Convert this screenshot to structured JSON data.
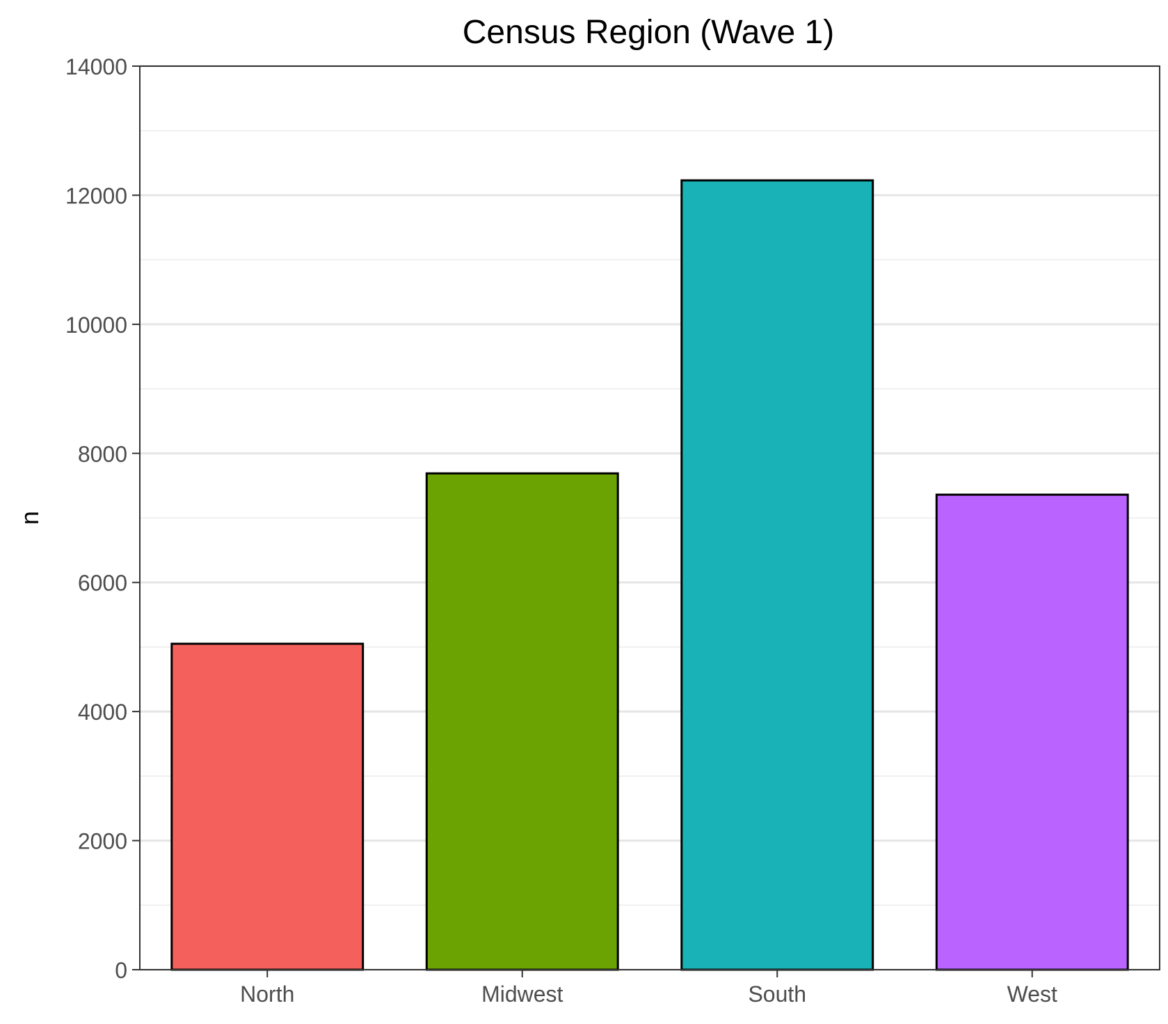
{
  "chart_data": {
    "type": "bar",
    "title": "Census Region (Wave 1)",
    "xlabel": "",
    "ylabel": "n",
    "categories": [
      "North",
      "Midwest",
      "South",
      "West"
    ],
    "values": [
      5050,
      7690,
      12230,
      7360
    ],
    "colors": [
      "#F4605C",
      "#6BA303",
      "#19B3B7",
      "#BB63FF"
    ],
    "bar_outline_color": "#000000",
    "ylim": [
      0,
      14000
    ],
    "yticks": [
      0,
      2000,
      4000,
      6000,
      8000,
      10000,
      12000,
      14000
    ],
    "ytick_labels": [
      "0",
      "2000",
      "4000",
      "6000",
      "8000",
      "10000",
      "12000",
      "14000"
    ],
    "grid": {
      "major_y": true,
      "minor_y": true,
      "x": false
    },
    "legend": "none",
    "panel_border": true
  }
}
